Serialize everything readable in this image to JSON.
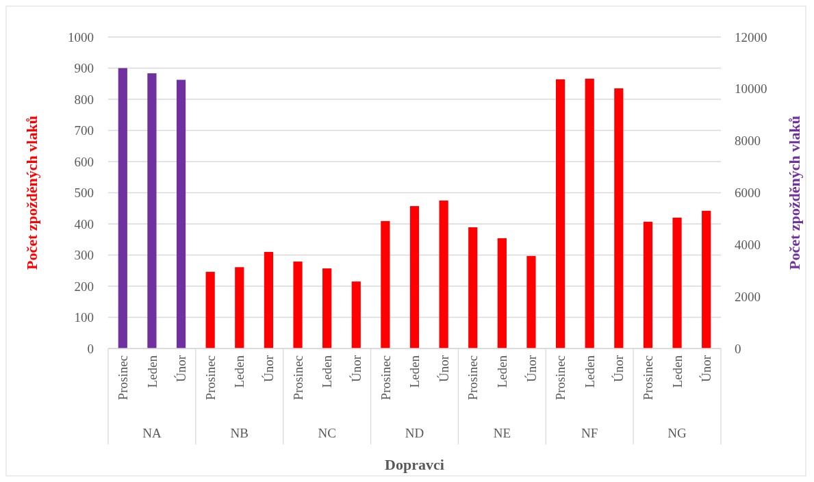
{
  "chart_data": {
    "type": "bar",
    "xlabel": "Dopravci",
    "ylabel": "Počet zpožděných vlaků",
    "y2label": "Počet zpožděných vlaků",
    "categories": [
      "Prosinec",
      "Leden",
      "Únor",
      "Prosinec",
      "Leden",
      "Únor",
      "Prosinec",
      "Leden",
      "Únor",
      "Prosinec",
      "Leden",
      "Únor",
      "Prosinec",
      "Leden",
      "Únor",
      "Prosinec",
      "Leden",
      "Únor",
      "Prosinec",
      "Leden",
      "Únor"
    ],
    "annotations": [
      "NA",
      "NB",
      "NC",
      "ND",
      "NE",
      "NF",
      "NG"
    ],
    "series": [
      {
        "color": "#7030a0",
        "axis": "y2",
        "values": [
          10800,
          10600,
          10350,
          null,
          null,
          null,
          null,
          null,
          null,
          null,
          null,
          null,
          null,
          null,
          null,
          null,
          null,
          null,
          null,
          null,
          null
        ]
      },
      {
        "color": "#ff0000",
        "values": [
          null,
          null,
          null,
          246,
          261,
          310,
          279,
          257,
          215,
          409,
          457,
          475,
          389,
          354,
          297,
          864,
          866,
          835,
          407,
          420,
          442
        ]
      }
    ],
    "ylim": [
      0,
      1000
    ],
    "yticks": [
      0,
      100,
      200,
      300,
      400,
      500,
      600,
      700,
      800,
      900,
      1000
    ],
    "y2lim": [
      0,
      12000
    ],
    "y2ticks": [
      0,
      2000,
      4000,
      6000,
      8000,
      10000,
      12000
    ],
    "grid": "y"
  }
}
